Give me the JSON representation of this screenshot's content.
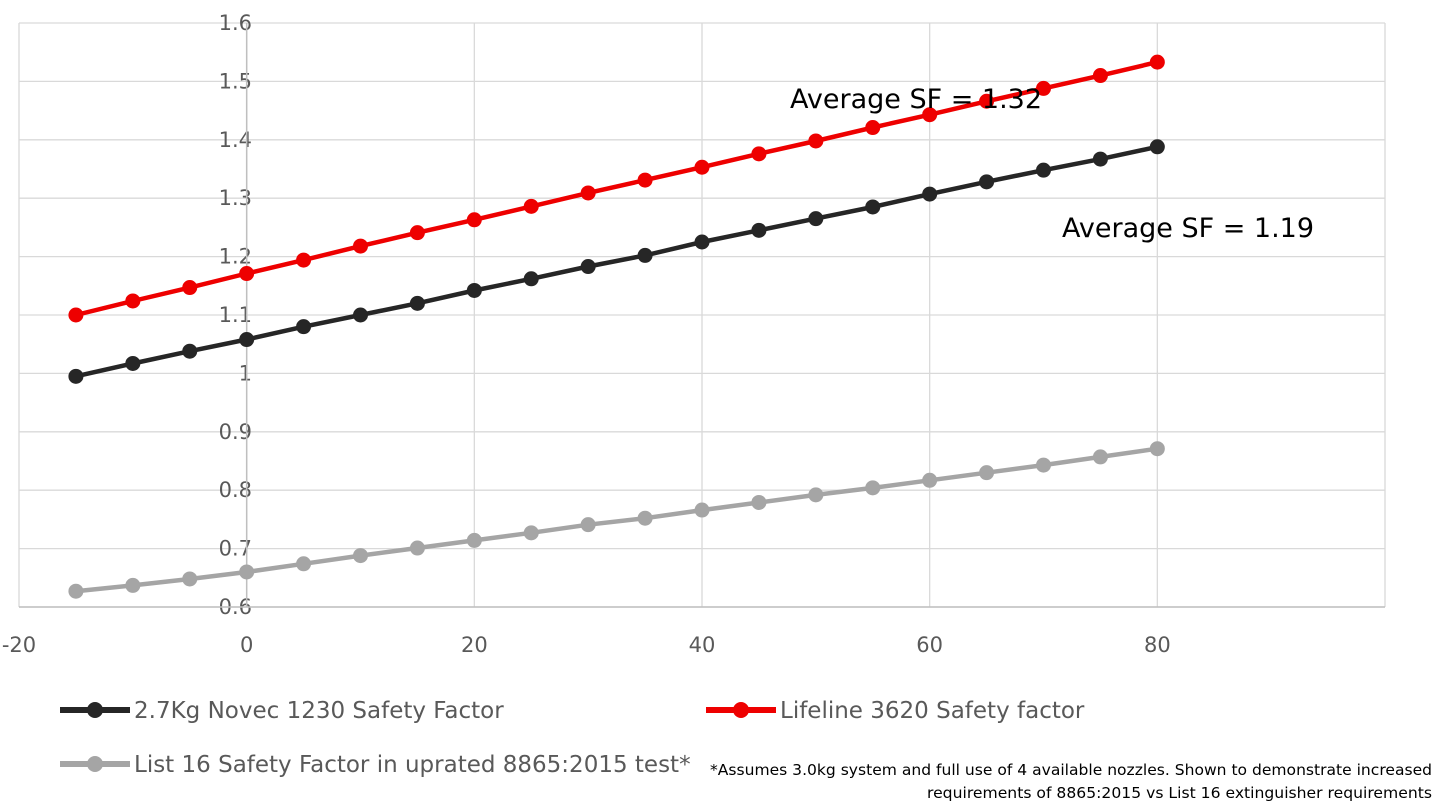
{
  "chart_data": {
    "type": "line",
    "x": [
      -15,
      -10,
      -5,
      0,
      5,
      10,
      15,
      20,
      25,
      30,
      35,
      40,
      45,
      50,
      55,
      60,
      65,
      70,
      75,
      80
    ],
    "series": [
      {
        "name": "2.7Kg Novec 1230 Safety Factor",
        "color": "#262626",
        "values": [
          0.995,
          1.017,
          1.038,
          1.058,
          1.08,
          1.1,
          1.12,
          1.142,
          1.162,
          1.183,
          1.202,
          1.225,
          1.245,
          1.265,
          1.285,
          1.307,
          1.328,
          1.348,
          1.367,
          1.388
        ]
      },
      {
        "name": "Lifeline 3620 Safety factor",
        "color": "#ee0000",
        "values": [
          1.1,
          1.124,
          1.147,
          1.171,
          1.194,
          1.218,
          1.241,
          1.263,
          1.286,
          1.309,
          1.331,
          1.353,
          1.376,
          1.398,
          1.421,
          1.443,
          1.466,
          1.488,
          1.51,
          1.533
        ]
      },
      {
        "name": "List 16 Safety Factor in uprated 8865:2015 test*",
        "color": "#a5a5a5",
        "values": [
          0.627,
          0.637,
          0.648,
          0.66,
          0.674,
          0.688,
          0.701,
          0.714,
          0.727,
          0.741,
          0.752,
          0.766,
          0.779,
          0.792,
          0.804,
          0.817,
          0.83,
          0.843,
          0.857,
          0.871
        ]
      }
    ],
    "xlim": [
      -20,
      100
    ],
    "ylim": [
      0.6,
      1.6
    ],
    "x_ticks": [
      -20,
      0,
      20,
      40,
      60,
      80
    ],
    "y_ticks": [
      0.6,
      0.7,
      0.8,
      0.9,
      1,
      1.1,
      1.2,
      1.3,
      1.4,
      1.5,
      1.6
    ],
    "grid": true,
    "legend_position": "bottom",
    "annotations": [
      {
        "text": "Average SF = 1.32",
        "series": "Lifeline 3620 Safety factor"
      },
      {
        "text": "Average SF = 1.19",
        "series": "2.7Kg Novec 1230 Safety Factor"
      }
    ],
    "footnote": [
      "*Assumes 3.0kg system and full use of 4 available nozzles. Shown to demonstrate increased",
      "requirements of 8865:2015 vs List 16 extinguisher requirements"
    ]
  }
}
